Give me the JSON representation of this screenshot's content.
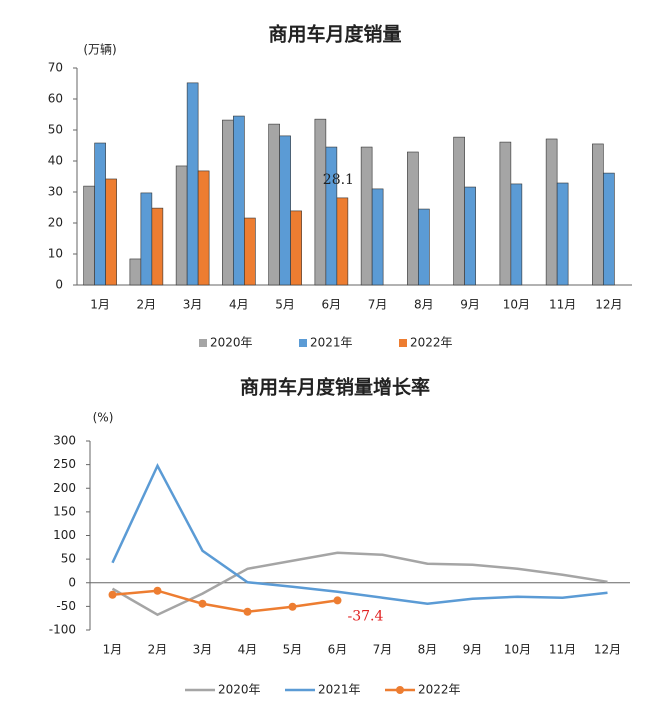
{
  "chart_data": [
    {
      "type": "bar",
      "title": "商用车月度销量",
      "y_label": "(万辆)",
      "categories": [
        "1月",
        "2月",
        "3月",
        "4月",
        "5月",
        "6月",
        "7月",
        "8月",
        "9月",
        "10月",
        "11月",
        "12月"
      ],
      "ylim": [
        0,
        70
      ],
      "yticks": [
        0,
        10,
        20,
        30,
        40,
        50,
        60,
        70
      ],
      "series": [
        {
          "name": "2020年",
          "color": "#a5a5a5",
          "values": [
            31.9,
            8.4,
            38.4,
            53.2,
            51.9,
            53.5,
            44.5,
            42.9,
            47.7,
            46.1,
            47.1,
            45.5
          ]
        },
        {
          "name": "2021年",
          "color": "#5b9bd5",
          "values": [
            45.8,
            29.7,
            65.2,
            54.5,
            48.1,
            44.5,
            31.0,
            24.5,
            31.6,
            32.6,
            32.9,
            36.1
          ]
        },
        {
          "name": "2022年",
          "color": "#ed7d31",
          "values": [
            34.2,
            24.8,
            36.8,
            21.6,
            23.9,
            28.1,
            null,
            null,
            null,
            null,
            null,
            null
          ],
          "value_labels": [
            null,
            null,
            null,
            null,
            null,
            "28.1",
            null,
            null,
            null,
            null,
            null,
            null
          ]
        }
      ]
    },
    {
      "type": "line",
      "title": "商用车月度销量增长率",
      "y_label": "(%)",
      "categories": [
        "1月",
        "2月",
        "3月",
        "4月",
        "5月",
        "6月",
        "7月",
        "8月",
        "9月",
        "10月",
        "11月",
        "12月"
      ],
      "ylim": [
        -100,
        300
      ],
      "yticks": [
        -100,
        -50,
        0,
        50,
        100,
        150,
        200,
        250,
        300
      ],
      "series": [
        {
          "name": "2020年",
          "color": "#a5a5a5",
          "marker": false,
          "values": [
            -12.7,
            -67.7,
            -23,
            29.6,
            46.6,
            63.5,
            59.3,
            40.2,
            38,
            29.6,
            17,
            2
          ]
        },
        {
          "name": "2021年",
          "color": "#5b9bd5",
          "marker": false,
          "values": [
            42.3,
            247.6,
            67.7,
            1,
            -8.5,
            -19,
            -31.7,
            -44.4,
            -33.9,
            -29.6,
            -31.7,
            -21.2
          ]
        },
        {
          "name": "2022年",
          "color": "#ed7d31",
          "marker": true,
          "values": [
            -25.4,
            -16.9,
            -44.4,
            -61.4,
            -50.8,
            -37.4,
            null,
            null,
            null,
            null,
            null,
            null
          ],
          "value_labels": [
            null,
            null,
            null,
            null,
            null,
            "-37.4",
            null,
            null,
            null,
            null,
            null,
            null
          ]
        }
      ]
    }
  ]
}
